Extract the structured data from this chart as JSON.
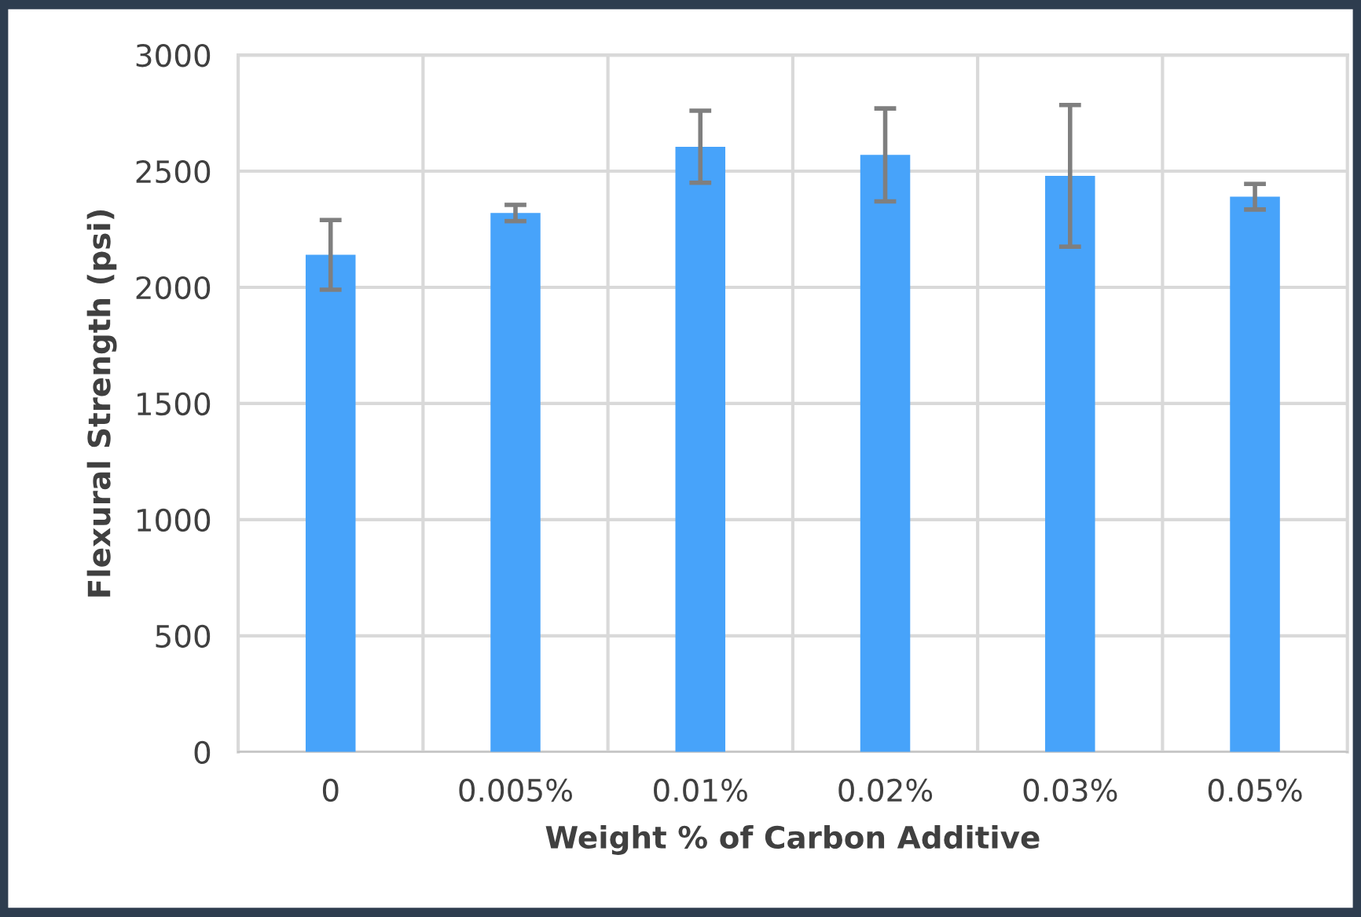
{
  "chart_data": {
    "type": "bar",
    "xlabel": "Weight % of Carbon Additive",
    "ylabel": "Flexural Strength (psi)",
    "categories": [
      "0",
      "0.005%",
      "0.01%",
      "0.02%",
      "0.03%",
      "0.05%"
    ],
    "values": [
      2140,
      2320,
      2605,
      2570,
      2480,
      2390
    ],
    "errors": [
      150,
      35,
      155,
      200,
      305,
      55
    ],
    "color": "#47a3fa",
    "ylim": [
      0,
      3000
    ],
    "yticks": [
      0,
      500,
      1000,
      1500,
      2000,
      2500,
      3000
    ],
    "grid": true
  }
}
